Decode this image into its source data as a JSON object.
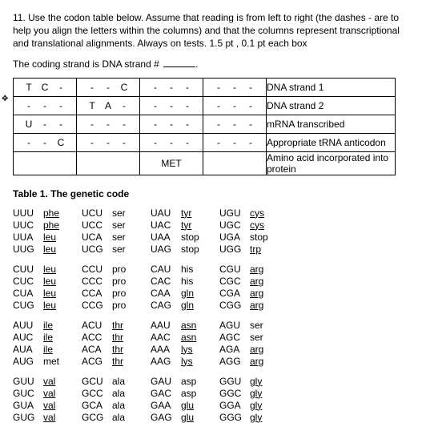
{
  "question": {
    "number": "11.",
    "text": "Use the codon table below. Assume that reading is from left to right (the dashes - are to help you align the letters within the columns) and that the columns represent transcriptional and translational alignments. Always on tests. 1.5 pt , 0.1 pt each box",
    "coding_prompt": "The coding strand is DNA strand #"
  },
  "grid": {
    "rows": [
      {
        "cells": [
          [
            "T",
            "C",
            "-"
          ],
          [
            "-",
            "-",
            "C"
          ],
          [
            "-",
            "-",
            "-"
          ],
          [
            "-",
            "-",
            "-"
          ]
        ],
        "label": "DNA strand 1"
      },
      {
        "cells": [
          [
            "-",
            "-",
            "-"
          ],
          [
            "T",
            "A",
            "-"
          ],
          [
            "-",
            "-",
            "-"
          ],
          [
            "-",
            "-",
            "-"
          ]
        ],
        "label": "DNA strand 2"
      },
      {
        "cells": [
          [
            "U",
            "-",
            "-"
          ],
          [
            "-",
            "-",
            "-"
          ],
          [
            "-",
            "-",
            "-"
          ],
          [
            "-",
            "-",
            "-"
          ]
        ],
        "label": "mRNA transcribed"
      },
      {
        "cells": [
          [
            "-",
            "-",
            "C"
          ],
          [
            "-",
            "-",
            "-"
          ],
          [
            "-",
            "-",
            "-"
          ],
          [
            "-",
            "-",
            "-"
          ]
        ],
        "label": "Appropriate tRNA anticodon"
      },
      {
        "cells": [
          [
            ""
          ],
          [
            ""
          ],
          [
            "MET"
          ],
          [
            ""
          ]
        ],
        "label": "Amino acid incorporated into protein",
        "single": true
      }
    ]
  },
  "codon_title": "Table 1. The genetic code",
  "codon_blocks": [
    [
      [
        "UUU",
        "phe",
        1,
        "UCU",
        "ser",
        0,
        "UAU",
        "tyr",
        1,
        "UGU",
        "cys",
        1
      ],
      [
        "UUC",
        "phe",
        1,
        "UCC",
        "ser",
        0,
        "UAC",
        "tyr",
        1,
        "UGC",
        "cys",
        1
      ],
      [
        "UUA",
        "leu",
        1,
        "UCA",
        "ser",
        0,
        "UAA",
        "stop",
        0,
        "UGA",
        "stop",
        0
      ],
      [
        "UUG",
        "leu",
        1,
        "UCG",
        "ser",
        0,
        "UAG",
        "stop",
        0,
        "UGG",
        "trp",
        1
      ]
    ],
    [
      [
        "CUU",
        "leu",
        1,
        "CCU",
        "pro",
        0,
        "CAU",
        "his",
        0,
        "CGU",
        "arg",
        1
      ],
      [
        "CUC",
        "leu",
        1,
        "CCC",
        "pro",
        0,
        "CAC",
        "his",
        0,
        "CGC",
        "arg",
        1
      ],
      [
        "CUA",
        "leu",
        1,
        "CCA",
        "pro",
        0,
        "CAA",
        "gln",
        1,
        "CGA",
        "arg",
        1
      ],
      [
        "CUG",
        "leu",
        1,
        "CCG",
        "pro",
        0,
        "CAG",
        "gln",
        1,
        "CGG",
        "arg",
        1
      ]
    ],
    [
      [
        "AUU",
        "ile",
        1,
        "ACU",
        "thr",
        1,
        "AAU",
        "asn",
        1,
        "AGU",
        "ser",
        0
      ],
      [
        "AUC",
        "ile",
        1,
        "ACC",
        "thr",
        1,
        "AAC",
        "asn",
        1,
        "AGC",
        "ser",
        0
      ],
      [
        "AUA",
        "ile",
        1,
        "ACA",
        "thr",
        1,
        "AAA",
        "lys",
        1,
        "AGA",
        "arg",
        1
      ],
      [
        "AUG",
        "met",
        0,
        "ACG",
        "thr",
        1,
        "AAG",
        "lys",
        1,
        "AGG",
        "arg",
        1
      ]
    ],
    [
      [
        "GUU",
        "val",
        1,
        "GCU",
        "ala",
        0,
        "GAU",
        "asp",
        0,
        "GGU",
        "gly",
        1
      ],
      [
        "GUC",
        "val",
        1,
        "GCC",
        "ala",
        0,
        "GAC",
        "asp",
        0,
        "GGC",
        "gly",
        1
      ],
      [
        "GUA",
        "val",
        1,
        "GCA",
        "ala",
        0,
        "GAA",
        "glu",
        1,
        "GGA",
        "gly",
        1
      ],
      [
        "GUG",
        "val",
        1,
        "GCG",
        "ala",
        0,
        "GAG",
        "glu",
        1,
        "GGG",
        "gly",
        1
      ]
    ]
  ]
}
